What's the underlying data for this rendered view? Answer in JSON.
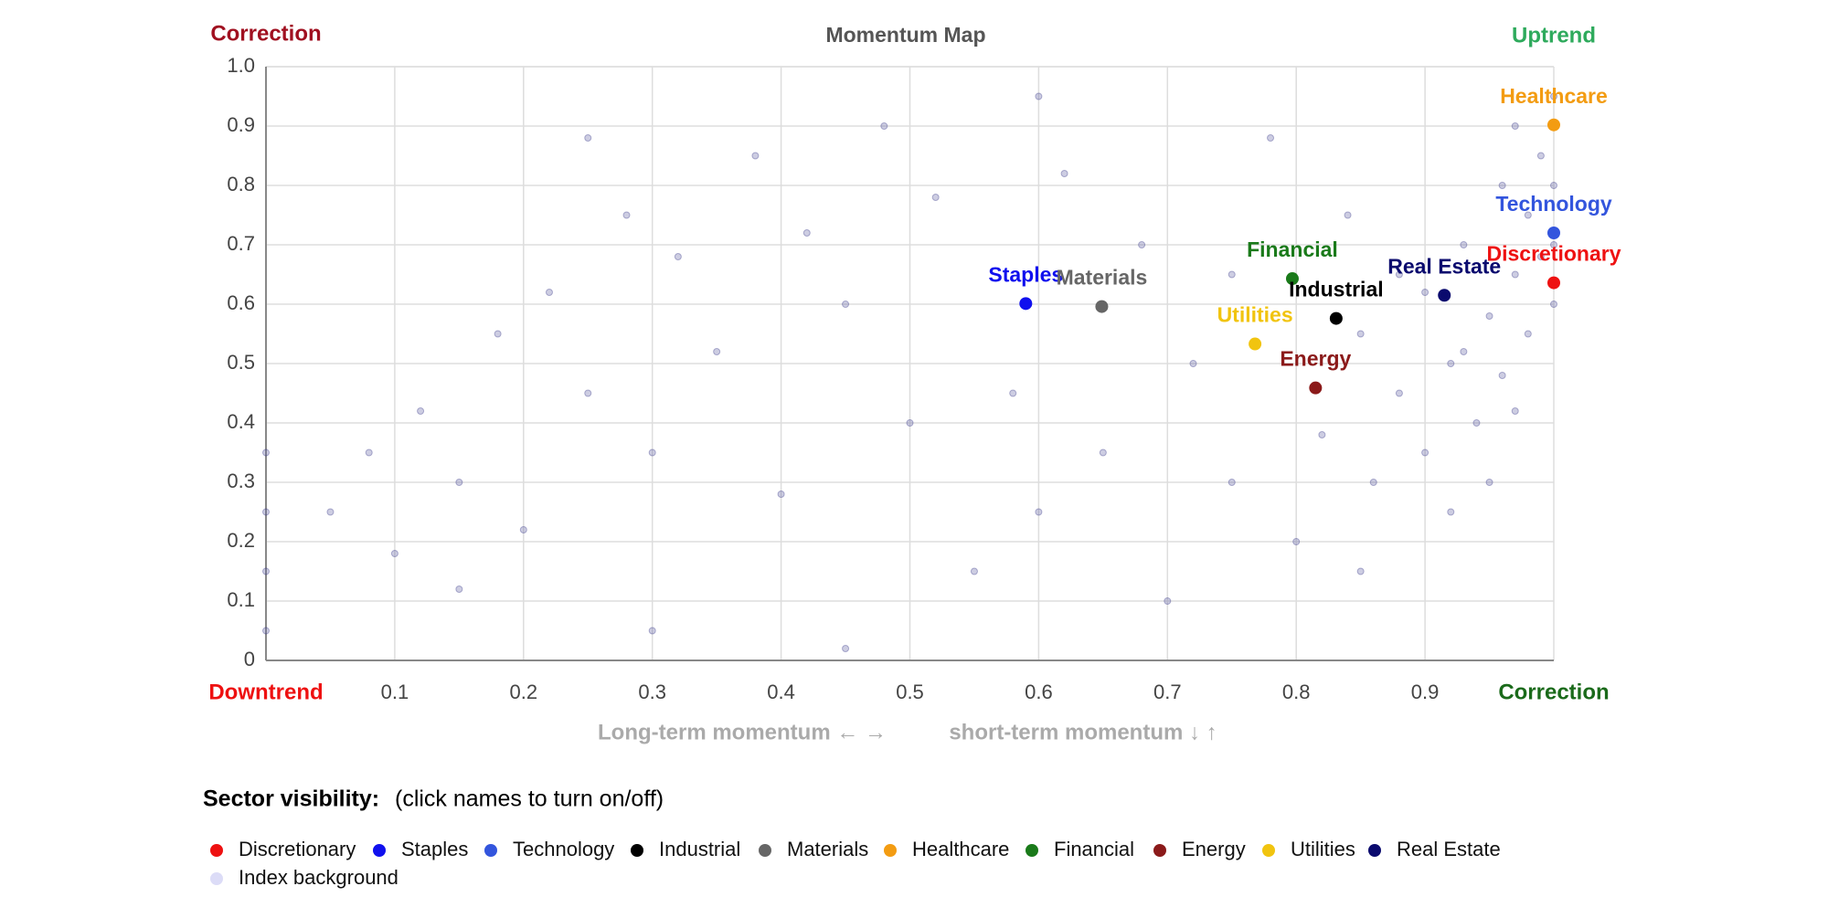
{
  "chart_data": {
    "type": "scatter",
    "title": "Momentum Map",
    "corner_labels": {
      "top_left": {
        "text": "Correction",
        "color": "#a01020"
      },
      "top_right": {
        "text": "Uptrend",
        "color": "#2eaa5c"
      },
      "bottom_left": {
        "text": "Downtrend",
        "color": "#ee1111"
      },
      "bottom_right": {
        "text": "Correction",
        "color": "#1a6a1a"
      }
    },
    "x_label": "Long-term momentum ← →",
    "y_label": "short-term momentum ↓ ↑",
    "xlim": [
      0,
      1
    ],
    "ylim": [
      0,
      1
    ],
    "xticks": [
      0.1,
      0.2,
      0.3,
      0.4,
      0.5,
      0.6,
      0.7,
      0.8,
      0.9
    ],
    "yticks": [
      0,
      0.1,
      0.2,
      0.3,
      0.4,
      0.5,
      0.6,
      0.7,
      0.8,
      0.9,
      {
        "value": 1,
        "label": "1.0"
      }
    ],
    "grid": true,
    "legend_title": "Sector visibility:",
    "legend_hint": "(click names to turn on/off)",
    "series": [
      {
        "name": "Discretionary",
        "color": "#ee1111",
        "x": [
          1.0
        ],
        "y": [
          0.636
        ]
      },
      {
        "name": "Staples",
        "color": "#1010ee",
        "x": [
          0.59
        ],
        "y": [
          0.601
        ]
      },
      {
        "name": "Technology",
        "color": "#3355dd",
        "x": [
          1.0
        ],
        "y": [
          0.72
        ]
      },
      {
        "name": "Industrial",
        "color": "#000000",
        "x": [
          0.831
        ],
        "y": [
          0.576
        ]
      },
      {
        "name": "Materials",
        "color": "#666666",
        "x": [
          0.649
        ],
        "y": [
          0.596
        ]
      },
      {
        "name": "Healthcare",
        "color": "#f39c12",
        "x": [
          1.0
        ],
        "y": [
          0.902
        ]
      },
      {
        "name": "Financial",
        "color": "#1a7a1a",
        "x": [
          0.797
        ],
        "y": [
          0.643
        ]
      },
      {
        "name": "Energy",
        "color": "#8b1a1a",
        "x": [
          0.815
        ],
        "y": [
          0.459
        ]
      },
      {
        "name": "Utilities",
        "color": "#f1c40f",
        "x": [
          0.768
        ],
        "y": [
          0.533
        ]
      },
      {
        "name": "Real Estate",
        "color": "#0a0a6e",
        "x": [
          0.915
        ],
        "y": [
          0.615
        ]
      },
      {
        "name": "Index background",
        "color": "#dcdcf7",
        "background": true,
        "x": [
          0.05,
          0.08,
          0.1,
          0.12,
          0.15,
          0.18,
          0.2,
          0.22,
          0.25,
          0.28,
          0.3,
          0.32,
          0.35,
          0.38,
          0.4,
          0.42,
          0.45,
          0.48,
          0.5,
          0.52,
          0.55,
          0.58,
          0.6,
          0.62,
          0.65,
          0.68,
          0.7,
          0.72,
          0.75,
          0.78,
          0.8,
          0.82,
          0.85,
          0.86,
          0.88,
          0.9,
          0.9,
          0.92,
          0.93,
          0.94,
          0.95,
          0.96,
          0.96,
          0.97,
          0.97,
          0.98,
          0.98,
          0.99,
          0.99,
          1,
          1,
          1,
          1,
          0,
          0,
          0,
          0,
          0.3,
          0.45,
          0.85,
          0.92,
          0.88,
          0.95,
          0.93,
          0.97,
          0.15,
          0.25,
          0.6,
          0.75,
          0.84
        ],
        "y": [
          0.25,
          0.35,
          0.18,
          0.42,
          0.3,
          0.55,
          0.22,
          0.62,
          0.45,
          0.75,
          0.35,
          0.68,
          0.52,
          0.85,
          0.28,
          0.72,
          0.6,
          0.9,
          0.4,
          0.78,
          0.15,
          0.45,
          0.25,
          0.82,
          0.35,
          0.7,
          0.1,
          0.5,
          0.3,
          0.88,
          0.2,
          0.38,
          0.55,
          0.3,
          0.45,
          0.62,
          0.35,
          0.5,
          0.7,
          0.4,
          0.58,
          0.8,
          0.48,
          0.65,
          0.9,
          0.55,
          0.75,
          0.68,
          0.85,
          0.6,
          0.7,
          0.8,
          0.95,
          0.05,
          0.15,
          0.25,
          0.35,
          0.05,
          0.02,
          0.15,
          0.25,
          0.65,
          0.3,
          0.52,
          0.42,
          0.12,
          0.88,
          0.95,
          0.65,
          0.75
        ]
      }
    ]
  }
}
